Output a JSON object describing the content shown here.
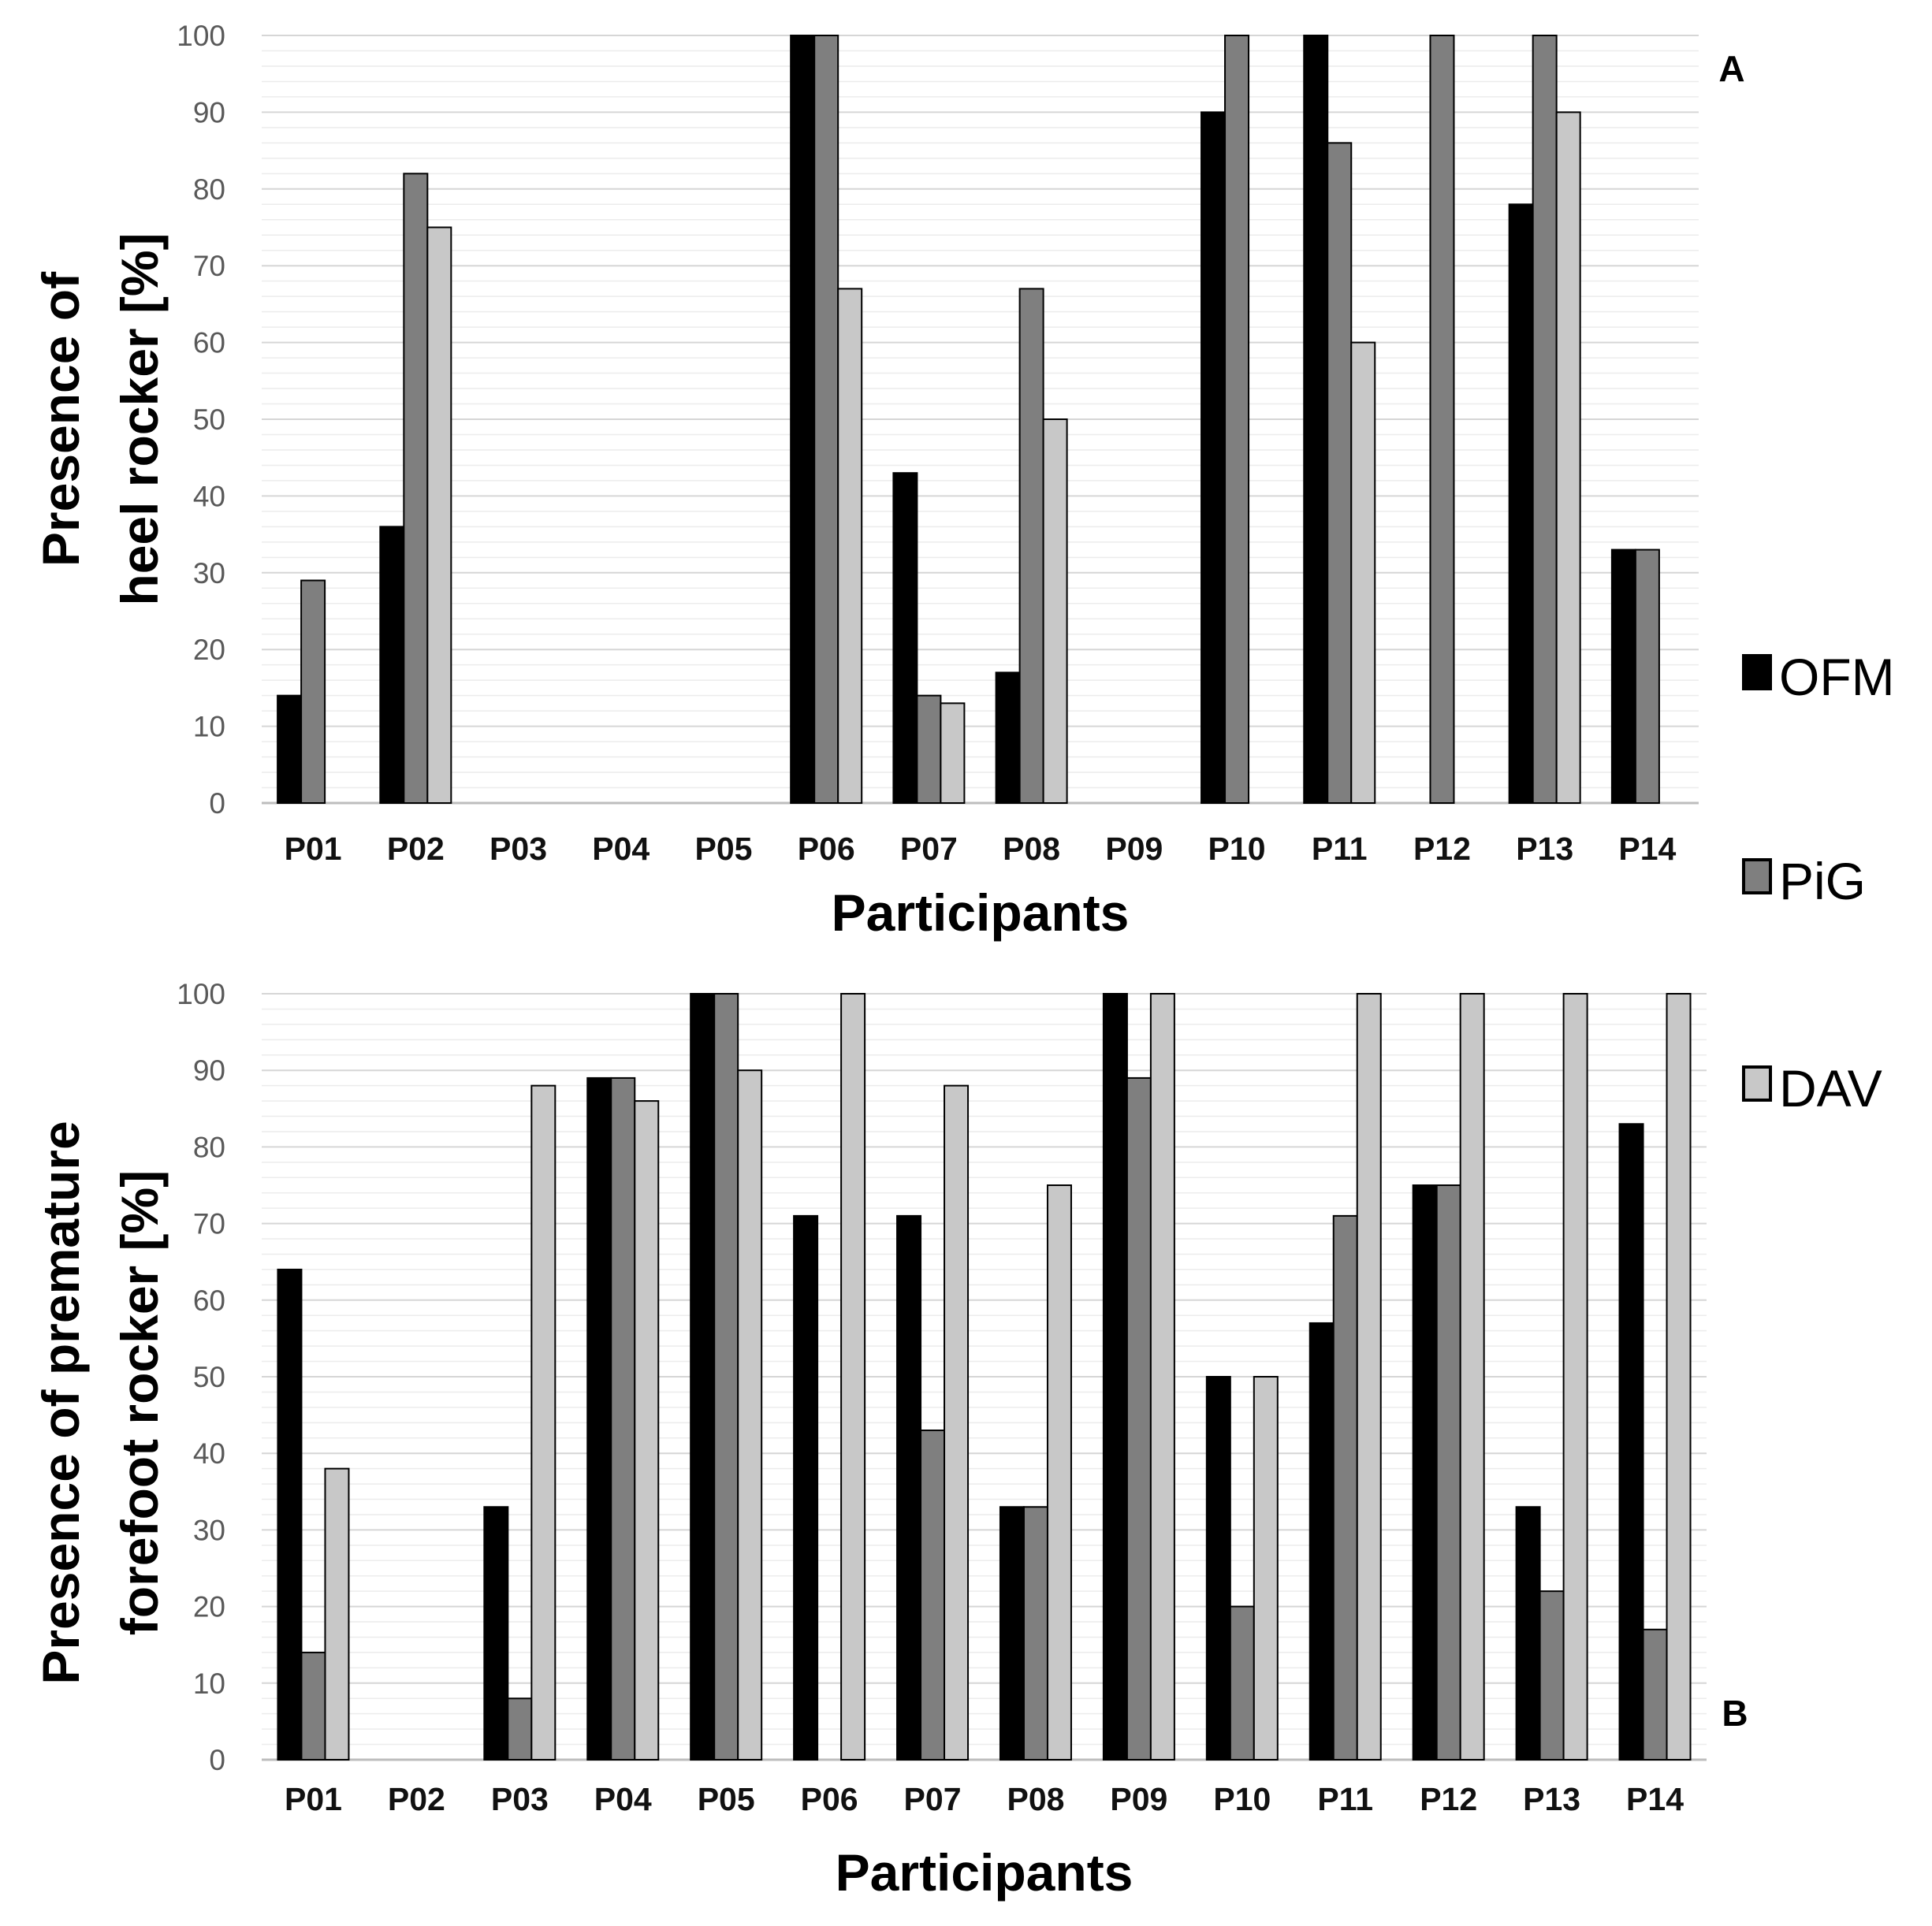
{
  "chart_data": [
    {
      "panel_label": "A",
      "type": "bar",
      "title": "",
      "ylabel_lines": [
        "Presence of",
        "heel rocker [%]"
      ],
      "xlabel": "Participants",
      "categories": [
        "P01",
        "P02",
        "P03",
        "P04",
        "P05",
        "P06",
        "P07",
        "P08",
        "P09",
        "P10",
        "P11",
        "P12",
        "P13",
        "P14"
      ],
      "ylim": [
        0,
        100
      ],
      "yticks": [
        "0",
        "10",
        "20",
        "30",
        "40",
        "50",
        "60",
        "70",
        "80",
        "90",
        "100"
      ],
      "grid": true,
      "series": [
        {
          "name": "OFM",
          "color": "#000000",
          "values": [
            14,
            36,
            0,
            0,
            0,
            100,
            43,
            17,
            0,
            90,
            100,
            0,
            78,
            33
          ]
        },
        {
          "name": "PiG",
          "color": "#7f7f7f",
          "values": [
            29,
            82,
            0,
            0,
            0,
            100,
            14,
            67,
            0,
            100,
            86,
            100,
            100,
            33
          ]
        },
        {
          "name": "DAV",
          "color": "#c8c8c8",
          "values": [
            0,
            75,
            0,
            0,
            0,
            67,
            13,
            50,
            0,
            0,
            60,
            0,
            90,
            0
          ]
        }
      ]
    },
    {
      "panel_label": "B",
      "type": "bar",
      "title": "",
      "ylabel_lines": [
        "Presence of premature",
        "forefoot rocker  [%]"
      ],
      "xlabel": "Participants",
      "categories": [
        "P01",
        "P02",
        "P03",
        "P04",
        "P05",
        "P06",
        "P07",
        "P08",
        "P09",
        "P10",
        "P11",
        "P12",
        "P13",
        "P14"
      ],
      "ylim": [
        0,
        100
      ],
      "yticks": [
        "0",
        "10",
        "20",
        "30",
        "40",
        "50",
        "60",
        "70",
        "80",
        "90",
        "100"
      ],
      "grid": true,
      "series": [
        {
          "name": "OFM",
          "color": "#000000",
          "values": [
            64,
            0,
            33,
            89,
            100,
            71,
            71,
            33,
            100,
            50,
            57,
            75,
            33,
            83
          ]
        },
        {
          "name": "PiG",
          "color": "#7f7f7f",
          "values": [
            14,
            0,
            8,
            89,
            100,
            0,
            43,
            33,
            89,
            20,
            71,
            75,
            22,
            17
          ]
        },
        {
          "name": "DAV",
          "color": "#c8c8c8",
          "values": [
            38,
            0,
            88,
            86,
            90,
            100,
            88,
            75,
            100,
            50,
            100,
            100,
            100,
            100
          ]
        }
      ]
    }
  ],
  "legend": {
    "position": "right",
    "items": [
      {
        "name": "OFM",
        "color": "#000000"
      },
      {
        "name": "PiG",
        "color": "#7f7f7f"
      },
      {
        "name": "DAV",
        "color": "#c8c8c8"
      }
    ]
  }
}
